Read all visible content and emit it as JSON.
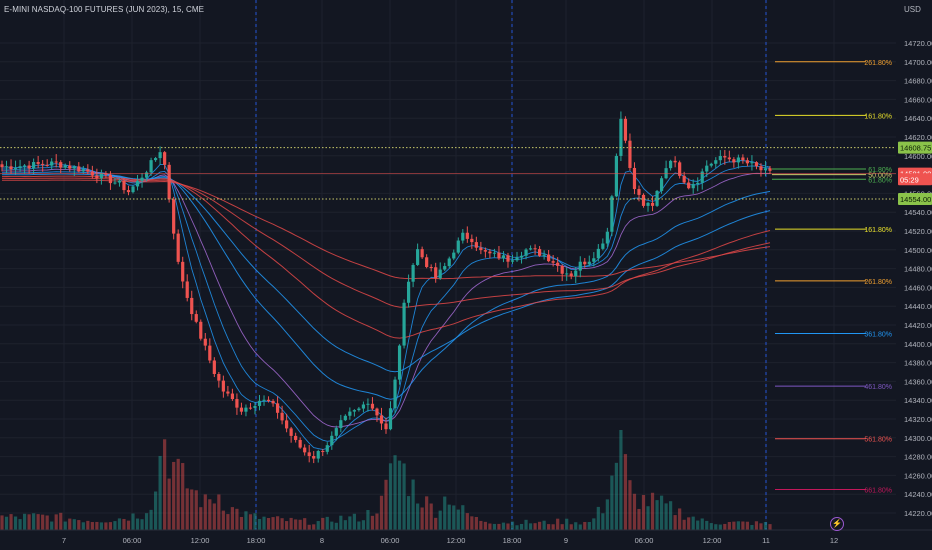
{
  "header": {
    "title": "E-MINI NASDAQ-100 FUTURES (JUN 2023), 15, CME",
    "currency": "USD"
  },
  "colors": {
    "background": "#131722",
    "up": "#26a69a",
    "down": "#ef5350",
    "grid": "#1e222d",
    "text": "#b2b5be",
    "session_line": "#2962ff",
    "dotted_level": "#c8c86a",
    "price_line": "#ef5350",
    "ma_blue": "#2196f3",
    "ma_violet": "#a66bd6",
    "ma_red": "#e04848"
  },
  "chart_data": {
    "type": "candlestick",
    "title": "E-MINI NASDAQ-100 FUTURES (JUN 2023), 15, CME",
    "ylabel": "USD",
    "ylim": [
      14200,
      14740
    ],
    "y_ticks": [
      14220,
      14240,
      14260,
      14280,
      14300,
      14320,
      14340,
      14360,
      14380,
      14400,
      14420,
      14440,
      14460,
      14480,
      14500,
      14520,
      14540,
      14560,
      14580,
      14600,
      14620,
      14640,
      14660,
      14680,
      14700,
      14720
    ],
    "x_ticks": [
      "7",
      "06:00",
      "12:00",
      "18:00",
      "8",
      "06:00",
      "12:00",
      "18:00",
      "9",
      "06:00",
      "12:00",
      "11",
      "12"
    ],
    "session_separators_after_ticks": [
      "18:00",
      "18:00",
      "11"
    ],
    "price_labels": [
      {
        "text": "14608.75",
        "value": 14608.75,
        "style": "level"
      },
      {
        "text": "14581.00",
        "value": 14581.0,
        "style": "last"
      },
      {
        "text": "05:29",
        "value": 14575.0,
        "style": "countdown"
      },
      {
        "text": "14554.00",
        "value": 14554.0,
        "style": "level"
      }
    ],
    "fib_levels": [
      {
        "label": "261.80%",
        "value": 14700,
        "color": "#f0a030"
      },
      {
        "label": "161.80%",
        "value": 14643,
        "color": "#e8e02a"
      },
      {
        "label": "61.80%",
        "value": 14586,
        "color": "#4caf50"
      },
      {
        "label": "50.00%",
        "value": 14580,
        "color": "#c8c86a"
      },
      {
        "label": "61.80%",
        "value": 14575,
        "color": "#4caf50"
      },
      {
        "label": "161.80%",
        "value": 14522,
        "color": "#e8e02a"
      },
      {
        "label": "261.80%",
        "value": 14467,
        "color": "#f0a030"
      },
      {
        "label": "361.80%",
        "value": 14411,
        "color": "#2196f3"
      },
      {
        "label": "461.80%",
        "value": 14355,
        "color": "#7e57c2"
      },
      {
        "label": "561.80%",
        "value": 14299,
        "color": "#ef5350"
      },
      {
        "label": "661.80%",
        "value": 14245,
        "color": "#c2185b"
      }
    ],
    "close_path": [
      [
        0,
        14588
      ],
      [
        6,
        14590
      ],
      [
        12,
        14592
      ],
      [
        18,
        14585
      ],
      [
        22,
        14578
      ],
      [
        26,
        14570
      ],
      [
        28,
        14562
      ],
      [
        30,
        14572
      ],
      [
        32,
        14585
      ],
      [
        34,
        14598
      ],
      [
        35,
        14606
      ],
      [
        36,
        14590
      ],
      [
        37,
        14555
      ],
      [
        38,
        14520
      ],
      [
        39,
        14485
      ],
      [
        41,
        14450
      ],
      [
        43,
        14420
      ],
      [
        45,
        14395
      ],
      [
        47,
        14370
      ],
      [
        49,
        14350
      ],
      [
        51,
        14340
      ],
      [
        53,
        14330
      ],
      [
        55,
        14335
      ],
      [
        57,
        14340
      ],
      [
        59,
        14338
      ],
      [
        61,
        14328
      ],
      [
        63,
        14310
      ],
      [
        65,
        14295
      ],
      [
        67,
        14285
      ],
      [
        69,
        14280
      ],
      [
        71,
        14288
      ],
      [
        73,
        14300
      ],
      [
        75,
        14315
      ],
      [
        77,
        14325
      ],
      [
        79,
        14330
      ],
      [
        81,
        14340
      ],
      [
        83,
        14325
      ],
      [
        85,
        14310
      ],
      [
        86,
        14330
      ],
      [
        87,
        14360
      ],
      [
        88,
        14400
      ],
      [
        89,
        14440
      ],
      [
        90,
        14470
      ],
      [
        92,
        14500
      ],
      [
        94,
        14485
      ],
      [
        96,
        14470
      ],
      [
        98,
        14482
      ],
      [
        100,
        14500
      ],
      [
        102,
        14515
      ],
      [
        104,
        14512
      ],
      [
        106,
        14498
      ],
      [
        108,
        14495
      ],
      [
        110,
        14493
      ],
      [
        112,
        14490
      ],
      [
        114,
        14495
      ],
      [
        116,
        14500
      ],
      [
        118,
        14498
      ],
      [
        120,
        14495
      ],
      [
        122,
        14488
      ],
      [
        124,
        14478
      ],
      [
        126,
        14474
      ],
      [
        128,
        14485
      ],
      [
        130,
        14490
      ],
      [
        132,
        14500
      ],
      [
        134,
        14520
      ],
      [
        135,
        14560
      ],
      [
        136,
        14600
      ],
      [
        137,
        14640
      ],
      [
        138,
        14620
      ],
      [
        139,
        14585
      ],
      [
        140,
        14565
      ],
      [
        142,
        14548
      ],
      [
        144,
        14545
      ],
      [
        146,
        14578
      ],
      [
        148,
        14598
      ],
      [
        150,
        14582
      ],
      [
        152,
        14568
      ],
      [
        154,
        14575
      ],
      [
        156,
        14590
      ],
      [
        158,
        14595
      ],
      [
        160,
        14598
      ],
      [
        162,
        14596
      ],
      [
        164,
        14594
      ],
      [
        166,
        14590
      ],
      [
        168,
        14585
      ],
      [
        170,
        14581
      ]
    ],
    "volume_profile": [
      [
        0,
        14
      ],
      [
        10,
        15
      ],
      [
        20,
        11
      ],
      [
        25,
        12
      ],
      [
        31,
        18
      ],
      [
        34,
        40
      ],
      [
        35,
        95
      ],
      [
        36,
        100
      ],
      [
        37,
        85
      ],
      [
        38,
        70
      ],
      [
        40,
        55
      ],
      [
        42,
        45
      ],
      [
        45,
        30
      ],
      [
        48,
        40
      ],
      [
        50,
        25
      ],
      [
        55,
        15
      ],
      [
        60,
        12
      ],
      [
        65,
        10
      ],
      [
        70,
        9
      ],
      [
        75,
        13
      ],
      [
        80,
        14
      ],
      [
        84,
        30
      ],
      [
        86,
        60
      ],
      [
        87,
        85
      ],
      [
        88,
        75
      ],
      [
        89,
        65
      ],
      [
        90,
        55
      ],
      [
        92,
        40
      ],
      [
        94,
        30
      ],
      [
        96,
        22
      ],
      [
        99,
        40
      ],
      [
        101,
        24
      ],
      [
        105,
        12
      ],
      [
        110,
        9
      ],
      [
        120,
        8
      ],
      [
        125,
        10
      ],
      [
        130,
        8
      ],
      [
        133,
        25
      ],
      [
        134,
        45
      ],
      [
        135,
        60
      ],
      [
        136,
        80
      ],
      [
        137,
        100
      ],
      [
        138,
        70
      ],
      [
        139,
        45
      ],
      [
        140,
        35
      ],
      [
        145,
        30
      ],
      [
        150,
        20
      ],
      [
        155,
        10
      ],
      [
        160,
        8
      ],
      [
        165,
        8
      ],
      [
        170,
        7
      ]
    ]
  }
}
